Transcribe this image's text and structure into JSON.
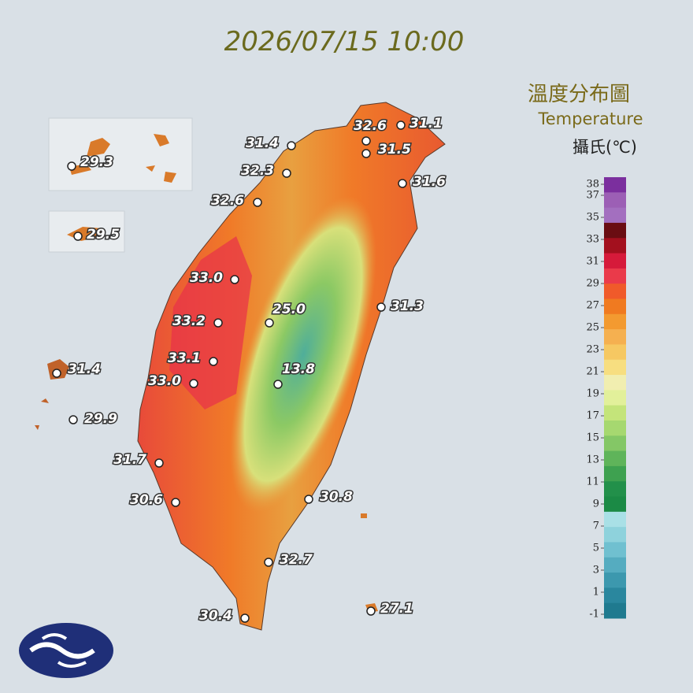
{
  "title": "2026/07/15 10:00",
  "legend": {
    "title_zh": "溫度分布圖",
    "title_en": "Temperature",
    "unit": "攝氏(℃)",
    "ticks": [
      38,
      37,
      35,
      33,
      31,
      29,
      27,
      25,
      23,
      21,
      19,
      17,
      15,
      13,
      11,
      9,
      7,
      5,
      3,
      1,
      -1
    ],
    "colors": [
      "#7b2f9e",
      "#9c5fb5",
      "#a36fbf",
      "#6a0d12",
      "#a3101e",
      "#d61a3a",
      "#ea3a4a",
      "#f05a2a",
      "#f07a20",
      "#f39a30",
      "#f5b050",
      "#f6c862",
      "#f7de80",
      "#f1eeb0",
      "#e2f09a",
      "#c4e47a",
      "#a6d870",
      "#84c766",
      "#5fb45a",
      "#3ea150",
      "#22904a",
      "#1b8a45",
      "#a9e0e6",
      "#8ed2dc",
      "#70c0d0",
      "#55acc0",
      "#3c98ae",
      "#2a879e",
      "#1f7a8f"
    ]
  },
  "stations": [
    "31.1",
    "32.6",
    "31.5",
    "31.4",
    "32.3",
    "31.6",
    "32.6",
    "33.0",
    "25.0",
    "31.3",
    "33.2",
    "33.1",
    "33.0",
    "13.8",
    "31.4",
    "29.9",
    "31.7",
    "30.6",
    "30.8",
    "32.7",
    "30.4",
    "27.1",
    "29.3",
    "29.5"
  ]
}
